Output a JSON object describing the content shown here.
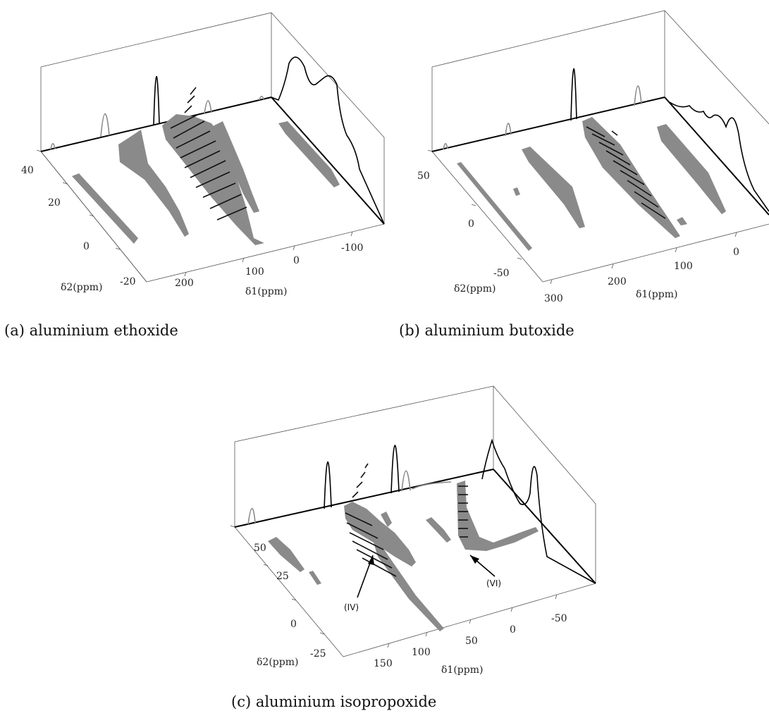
{
  "chart_data": [
    {
      "type": "3d-spectrum",
      "caption": "(a) aluminium ethoxide",
      "x_label": "δ1(ppm)",
      "y_label": "δ2(ppm)",
      "x_ticks": [
        "200",
        "100",
        "0",
        "-100"
      ],
      "y_ticks": [
        "40",
        "20",
        "0",
        "-20"
      ],
      "annotations": []
    },
    {
      "type": "3d-spectrum",
      "caption": "(b) aluminium butoxide",
      "x_label": "δ1(ppm)",
      "y_label": "δ2(ppm)",
      "x_ticks": [
        "300",
        "200",
        "100",
        "0"
      ],
      "y_ticks": [
        "50",
        "0",
        "-50"
      ],
      "annotations": []
    },
    {
      "type": "3d-spectrum",
      "caption": "(c) aluminium isopropoxide",
      "x_label": "δ1(ppm)",
      "y_label": "δ2(ppm)",
      "x_ticks": [
        "150",
        "100",
        "50",
        "0",
        "-50"
      ],
      "y_ticks": [
        "50",
        "25",
        "0",
        "-25"
      ],
      "annotations": [
        "(IV)",
        "(VI)"
      ]
    }
  ],
  "colors": {
    "simulation": "#8a8a8a",
    "experiment": "#000000",
    "frame": "#555555"
  }
}
